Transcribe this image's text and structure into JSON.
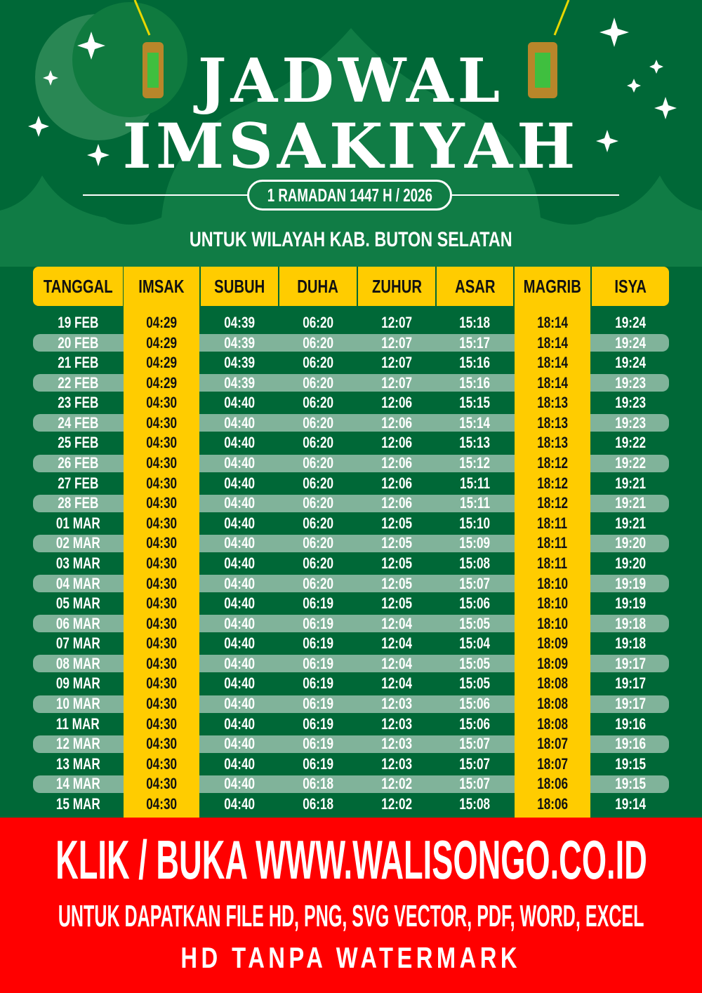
{
  "header": {
    "title_line1": "JADWAL",
    "title_line2": "IMSAKIYAH",
    "date_badge": "1 RAMADAN 1447 H / 2026",
    "region": "UNTUK WILAYAH KAB. BUTON SELATAN"
  },
  "table": {
    "columns": [
      "TANGGAL",
      "IMSAK",
      "SUBUH",
      "DUHA",
      "ZUHUR",
      "ASAR",
      "MAGRIB",
      "ISYA"
    ],
    "rows": [
      [
        "19 FEB",
        "04:29",
        "04:39",
        "06:20",
        "12:07",
        "15:18",
        "18:14",
        "19:24"
      ],
      [
        "20 FEB",
        "04:29",
        "04:39",
        "06:20",
        "12:07",
        "15:17",
        "18:14",
        "19:24"
      ],
      [
        "21 FEB",
        "04:29",
        "04:39",
        "06:20",
        "12:07",
        "15:16",
        "18:14",
        "19:24"
      ],
      [
        "22 FEB",
        "04:29",
        "04:39",
        "06:20",
        "12:07",
        "15:16",
        "18:14",
        "19:23"
      ],
      [
        "23 FEB",
        "04:30",
        "04:40",
        "06:20",
        "12:06",
        "15:15",
        "18:13",
        "19:23"
      ],
      [
        "24 FEB",
        "04:30",
        "04:40",
        "06:20",
        "12:06",
        "15:14",
        "18:13",
        "19:23"
      ],
      [
        "25 FEB",
        "04:30",
        "04:40",
        "06:20",
        "12:06",
        "15:13",
        "18:13",
        "19:22"
      ],
      [
        "26 FEB",
        "04:30",
        "04:40",
        "06:20",
        "12:06",
        "15:12",
        "18:12",
        "19:22"
      ],
      [
        "27 FEB",
        "04:30",
        "04:40",
        "06:20",
        "12:06",
        "15:11",
        "18:12",
        "19:21"
      ],
      [
        "28 FEB",
        "04:30",
        "04:40",
        "06:20",
        "12:06",
        "15:11",
        "18:12",
        "19:21"
      ],
      [
        "01 MAR",
        "04:30",
        "04:40",
        "06:20",
        "12:05",
        "15:10",
        "18:11",
        "19:21"
      ],
      [
        "02 MAR",
        "04:30",
        "04:40",
        "06:20",
        "12:05",
        "15:09",
        "18:11",
        "19:20"
      ],
      [
        "03 MAR",
        "04:30",
        "04:40",
        "06:20",
        "12:05",
        "15:08",
        "18:11",
        "19:20"
      ],
      [
        "04 MAR",
        "04:30",
        "04:40",
        "06:20",
        "12:05",
        "15:07",
        "18:10",
        "19:19"
      ],
      [
        "05 MAR",
        "04:30",
        "04:40",
        "06:19",
        "12:05",
        "15:06",
        "18:10",
        "19:19"
      ],
      [
        "06 MAR",
        "04:30",
        "04:40",
        "06:19",
        "12:04",
        "15:05",
        "18:10",
        "19:18"
      ],
      [
        "07 MAR",
        "04:30",
        "04:40",
        "06:19",
        "12:04",
        "15:04",
        "18:09",
        "19:18"
      ],
      [
        "08 MAR",
        "04:30",
        "04:40",
        "06:19",
        "12:04",
        "15:05",
        "18:09",
        "19:17"
      ],
      [
        "09 MAR",
        "04:30",
        "04:40",
        "06:19",
        "12:04",
        "15:05",
        "18:08",
        "19:17"
      ],
      [
        "10 MAR",
        "04:30",
        "04:40",
        "06:19",
        "12:03",
        "15:06",
        "18:08",
        "19:17"
      ],
      [
        "11 MAR",
        "04:30",
        "04:40",
        "06:19",
        "12:03",
        "15:06",
        "18:08",
        "19:16"
      ],
      [
        "12 MAR",
        "04:30",
        "04:40",
        "06:19",
        "12:03",
        "15:07",
        "18:07",
        "19:16"
      ],
      [
        "13 MAR",
        "04:30",
        "04:40",
        "06:19",
        "12:03",
        "15:07",
        "18:07",
        "19:15"
      ],
      [
        "14 MAR",
        "04:30",
        "04:40",
        "06:18",
        "12:02",
        "15:07",
        "18:06",
        "19:15"
      ],
      [
        "15 MAR",
        "04:30",
        "04:40",
        "06:18",
        "12:02",
        "15:08",
        "18:06",
        "19:14"
      ]
    ]
  },
  "banner": {
    "line1": "KLIK / BUKA WWW.WALISONGO.CO.ID",
    "line2": "UNTUK DAPATKAN FILE HD, PNG, SVG VECTOR, PDF, WORD, EXCEL",
    "line3": "HD TANPA WATERMARK"
  },
  "colors": {
    "background": "#006837",
    "accent": "#ffcc00",
    "stripe": "#80b39a",
    "banner": "#ff0000"
  }
}
